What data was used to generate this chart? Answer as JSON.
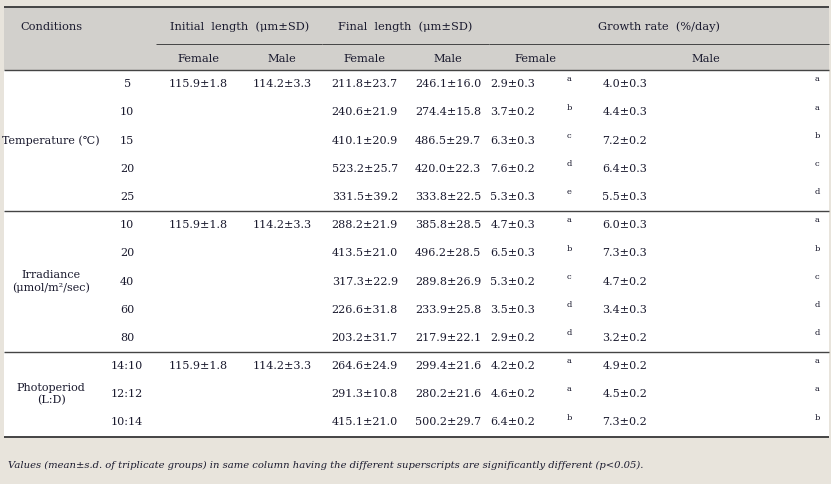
{
  "footnote": "Values (mean±s.d. of triplicate groups) in same column having the different superscripts are significantly different (p<0.05).",
  "sections": [
    {
      "label": "Temperature (℃)",
      "rows": [
        {
          "cond": "5",
          "init_f": "115.9±1.8",
          "init_m": "114.2±3.3",
          "final_f": "211.8±23.7",
          "final_m": "246.1±16.0",
          "gr_f": "2.9±0.3",
          "gr_f_sup": "a",
          "gr_m": "4.0±0.3",
          "gr_m_sup": "a"
        },
        {
          "cond": "10",
          "init_f": "",
          "init_m": "",
          "final_f": "240.6±21.9",
          "final_m": "274.4±15.8",
          "gr_f": "3.7±0.2",
          "gr_f_sup": "b",
          "gr_m": "4.4±0.3",
          "gr_m_sup": "a"
        },
        {
          "cond": "15",
          "init_f": "",
          "init_m": "",
          "final_f": "410.1±20.9",
          "final_m": "486.5±29.7",
          "gr_f": "6.3±0.3",
          "gr_f_sup": "c",
          "gr_m": "7.2±0.2",
          "gr_m_sup": "b"
        },
        {
          "cond": "20",
          "init_f": "",
          "init_m": "",
          "final_f": "523.2±25.7",
          "final_m": "420.0±22.3",
          "gr_f": "7.6±0.2",
          "gr_f_sup": "d",
          "gr_m": "6.4±0.3",
          "gr_m_sup": "c"
        },
        {
          "cond": "25",
          "init_f": "",
          "init_m": "",
          "final_f": "331.5±39.2",
          "final_m": "333.8±22.5",
          "gr_f": "5.3±0.3",
          "gr_f_sup": "e",
          "gr_m": "5.5±0.3",
          "gr_m_sup": "d"
        }
      ]
    },
    {
      "label": "Irradiance\n(μmol/m²/sec)",
      "rows": [
        {
          "cond": "10",
          "init_f": "115.9±1.8",
          "init_m": "114.2±3.3",
          "final_f": "288.2±21.9",
          "final_m": "385.8±28.5",
          "gr_f": "4.7±0.3",
          "gr_f_sup": "a",
          "gr_m": "6.0±0.3",
          "gr_m_sup": "a"
        },
        {
          "cond": "20",
          "init_f": "",
          "init_m": "",
          "final_f": "413.5±21.0",
          "final_m": "496.2±28.5",
          "gr_f": "6.5±0.3",
          "gr_f_sup": "b",
          "gr_m": "7.3±0.3",
          "gr_m_sup": "b"
        },
        {
          "cond": "40",
          "init_f": "",
          "init_m": "",
          "final_f": "317.3±22.9",
          "final_m": "289.8±26.9",
          "gr_f": "5.3±0.2",
          "gr_f_sup": "c",
          "gr_m": "4.7±0.2",
          "gr_m_sup": "c"
        },
        {
          "cond": "60",
          "init_f": "",
          "init_m": "",
          "final_f": "226.6±31.8",
          "final_m": "233.9±25.8",
          "gr_f": "3.5±0.3",
          "gr_f_sup": "d",
          "gr_m": "3.4±0.3",
          "gr_m_sup": "d"
        },
        {
          "cond": "80",
          "init_f": "",
          "init_m": "",
          "final_f": "203.2±31.7",
          "final_m": "217.9±22.1",
          "gr_f": "2.9±0.2",
          "gr_f_sup": "d",
          "gr_m": "3.2±0.2",
          "gr_m_sup": "d"
        }
      ]
    },
    {
      "label": "Photoperiod\n(L:D)",
      "rows": [
        {
          "cond": "14:10",
          "init_f": "115.9±1.8",
          "init_m": "114.2±3.3",
          "final_f": "264.6±24.9",
          "final_m": "299.4±21.6",
          "gr_f": "4.2±0.2",
          "gr_f_sup": "a",
          "gr_m": "4.9±0.2",
          "gr_m_sup": "a"
        },
        {
          "cond": "12:12",
          "init_f": "",
          "init_m": "",
          "final_f": "291.3±10.8",
          "final_m": "280.2±21.6",
          "gr_f": "4.6±0.2",
          "gr_f_sup": "a",
          "gr_m": "4.5±0.2",
          "gr_m_sup": "a"
        },
        {
          "cond": "10:14",
          "init_f": "",
          "init_m": "",
          "final_f": "415.1±21.0",
          "final_m": "500.2±29.7",
          "gr_f": "6.4±0.2",
          "gr_f_sup": "b",
          "gr_m": "7.3±0.2",
          "gr_m_sup": "b"
        }
      ]
    }
  ],
  "header_bg": "#d2d0cc",
  "body_bg": "#ffffff",
  "fig_bg": "#e8e4dc",
  "line_color": "#444444",
  "text_color": "#1a1a2e",
  "font_size": 8.0,
  "header_font_size": 8.2,
  "footnote_font_size": 7.2
}
